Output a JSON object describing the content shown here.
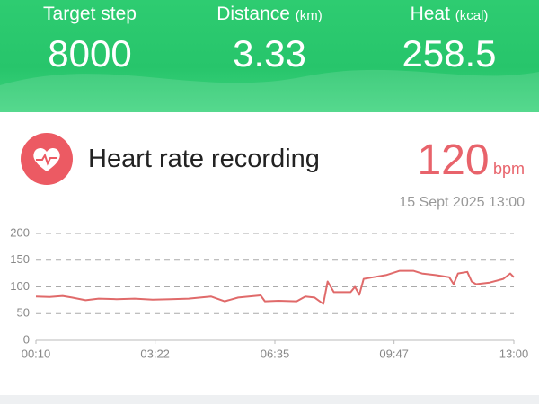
{
  "stats": [
    {
      "label": "Target step",
      "value": "8000"
    },
    {
      "label": "Distance",
      "unit": "(km)",
      "value": "3.33"
    },
    {
      "label": "Heat",
      "unit": "(kcal)",
      "value": "258.5"
    }
  ],
  "card": {
    "title": "Heart rate recording",
    "value": 120,
    "unit": "bpm",
    "timestamp": "15 Sept 2025 13:00"
  },
  "chart_data": {
    "type": "line",
    "color": "#e06a6a",
    "x": [
      10,
      32,
      53,
      68,
      90,
      111,
      140,
      169,
      198,
      227,
      256,
      292,
      314,
      336,
      372,
      379,
      401,
      430,
      444,
      459,
      473,
      480,
      490,
      517,
      524,
      531,
      538,
      553,
      574,
      596,
      618,
      632,
      654,
      676,
      683,
      690,
      705,
      712,
      719,
      741,
      763,
      774,
      780
    ],
    "values": [
      82,
      81,
      83,
      80,
      75,
      78,
      77,
      78,
      76,
      77,
      78,
      82,
      73,
      80,
      84,
      73,
      74,
      73,
      82,
      80,
      68,
      110,
      90,
      90,
      100,
      85,
      115,
      118,
      122,
      130,
      130,
      125,
      122,
      118,
      105,
      125,
      128,
      110,
      105,
      108,
      115,
      125,
      118
    ],
    "xlim": [
      10,
      780
    ],
    "xticks": [
      {
        "value": 10,
        "label": "00:10"
      },
      {
        "value": 202,
        "label": "03:22"
      },
      {
        "value": 395,
        "label": "06:35"
      },
      {
        "value": 587,
        "label": "09:47"
      },
      {
        "value": 780,
        "label": "13:00"
      }
    ],
    "ylim": [
      0,
      200
    ],
    "yticks": [
      0,
      50,
      100,
      150,
      200
    ],
    "grid": true
  }
}
